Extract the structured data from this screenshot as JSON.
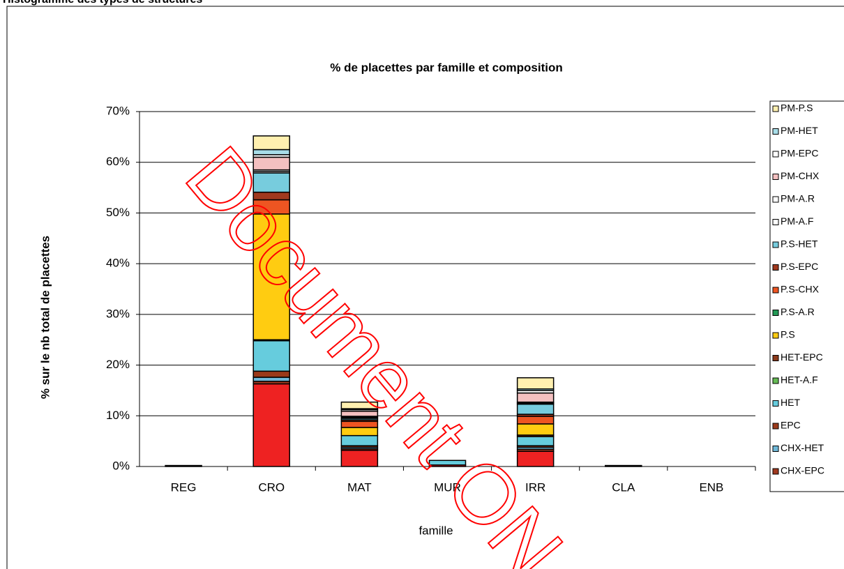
{
  "header": "Histogramme des types de structures",
  "watermark": "Document ON",
  "chart_data": {
    "type": "bar",
    "stacked": true,
    "title": "% de placettes par famille et composition",
    "x_label": "famille",
    "y_label": "% sur le nb total de placettes",
    "categories": [
      "REG",
      "CRO",
      "MAT",
      "MUR",
      "IRR",
      "CLA",
      "ENB"
    ],
    "ylim": [
      0,
      70
    ],
    "yticks": [
      {
        "value": 0,
        "label": "0%"
      },
      {
        "value": 10,
        "label": "10%"
      },
      {
        "value": 20,
        "label": "20%"
      },
      {
        "value": 30,
        "label": "30%"
      },
      {
        "value": 40,
        "label": "40%"
      },
      {
        "value": 50,
        "label": "50%"
      },
      {
        "value": 60,
        "label": "60%"
      },
      {
        "value": 70,
        "label": "70%"
      }
    ],
    "grid": true,
    "legend": "right",
    "series": [
      {
        "color": "#ee2222",
        "values": [
          0.2,
          16.3,
          3.2,
          0.3,
          3.0,
          0.2,
          0
        ]
      },
      {
        "name": "CHX-EPC",
        "color": "#a0391e",
        "values": [
          0,
          0.5,
          0.3,
          0,
          0.4,
          0,
          0
        ]
      },
      {
        "name": "CHX-HET",
        "color": "#6fb8d8",
        "values": [
          0,
          0.8,
          0.3,
          0,
          0.4,
          0,
          0
        ]
      },
      {
        "name": "EPC",
        "color": "#9b3a1a",
        "values": [
          0,
          1.2,
          0.3,
          0,
          0.3,
          0,
          0
        ]
      },
      {
        "name": "HET",
        "color": "#66ccdd",
        "values": [
          0,
          6.0,
          2.0,
          0.9,
          1.8,
          0,
          0
        ]
      },
      {
        "name": "HET-A.F",
        "color": "#66bb55",
        "values": [
          0,
          0,
          0,
          0,
          0,
          0,
          0
        ]
      },
      {
        "name": "HET-EPC",
        "color": "#8b3a1a",
        "values": [
          0,
          0.2,
          0,
          0,
          0.3,
          0,
          0
        ]
      },
      {
        "name": "P.S",
        "color": "#ffcc11",
        "values": [
          0,
          24.8,
          1.6,
          0,
          2.2,
          0,
          0
        ]
      },
      {
        "name": "P.S-A.R",
        "color": "#229955",
        "values": [
          0,
          0,
          0,
          0,
          0,
          0,
          0
        ]
      },
      {
        "name": "P.S-CHX",
        "color": "#ee5522",
        "values": [
          0,
          2.8,
          1.2,
          0,
          1.5,
          0,
          0
        ]
      },
      {
        "name": "P.S-EPC",
        "color": "#a0391e",
        "values": [
          0,
          1.5,
          0.3,
          0,
          0.4,
          0,
          0
        ]
      },
      {
        "name": "P.S-HET",
        "color": "#77ccdd",
        "values": [
          0,
          3.8,
          0.3,
          0,
          2.0,
          0,
          0
        ]
      },
      {
        "name": "PM-A.F",
        "color": "#ffffff",
        "values": [
          0,
          0.3,
          0.2,
          0,
          0.2,
          0,
          0
        ]
      },
      {
        "name": "PM-A.R",
        "color": "#ffffff",
        "values": [
          0,
          0.3,
          0.2,
          0,
          0.2,
          0,
          0
        ]
      },
      {
        "name": "PM-CHX",
        "color": "#f4c0c0",
        "values": [
          0,
          2.5,
          1.0,
          0,
          1.8,
          0,
          0
        ]
      },
      {
        "name": "PM-EPC",
        "color": "#ffffff",
        "values": [
          0,
          0.5,
          0.3,
          0,
          0.5,
          0,
          0
        ]
      },
      {
        "name": "PM-HET",
        "color": "#a8dde8",
        "values": [
          0,
          1.0,
          0.2,
          0,
          0.3,
          0,
          0
        ]
      },
      {
        "name": "PM-P.S",
        "color": "#fff0b0",
        "values": [
          0,
          2.7,
          1.3,
          0,
          2.2,
          0,
          0
        ]
      }
    ]
  }
}
